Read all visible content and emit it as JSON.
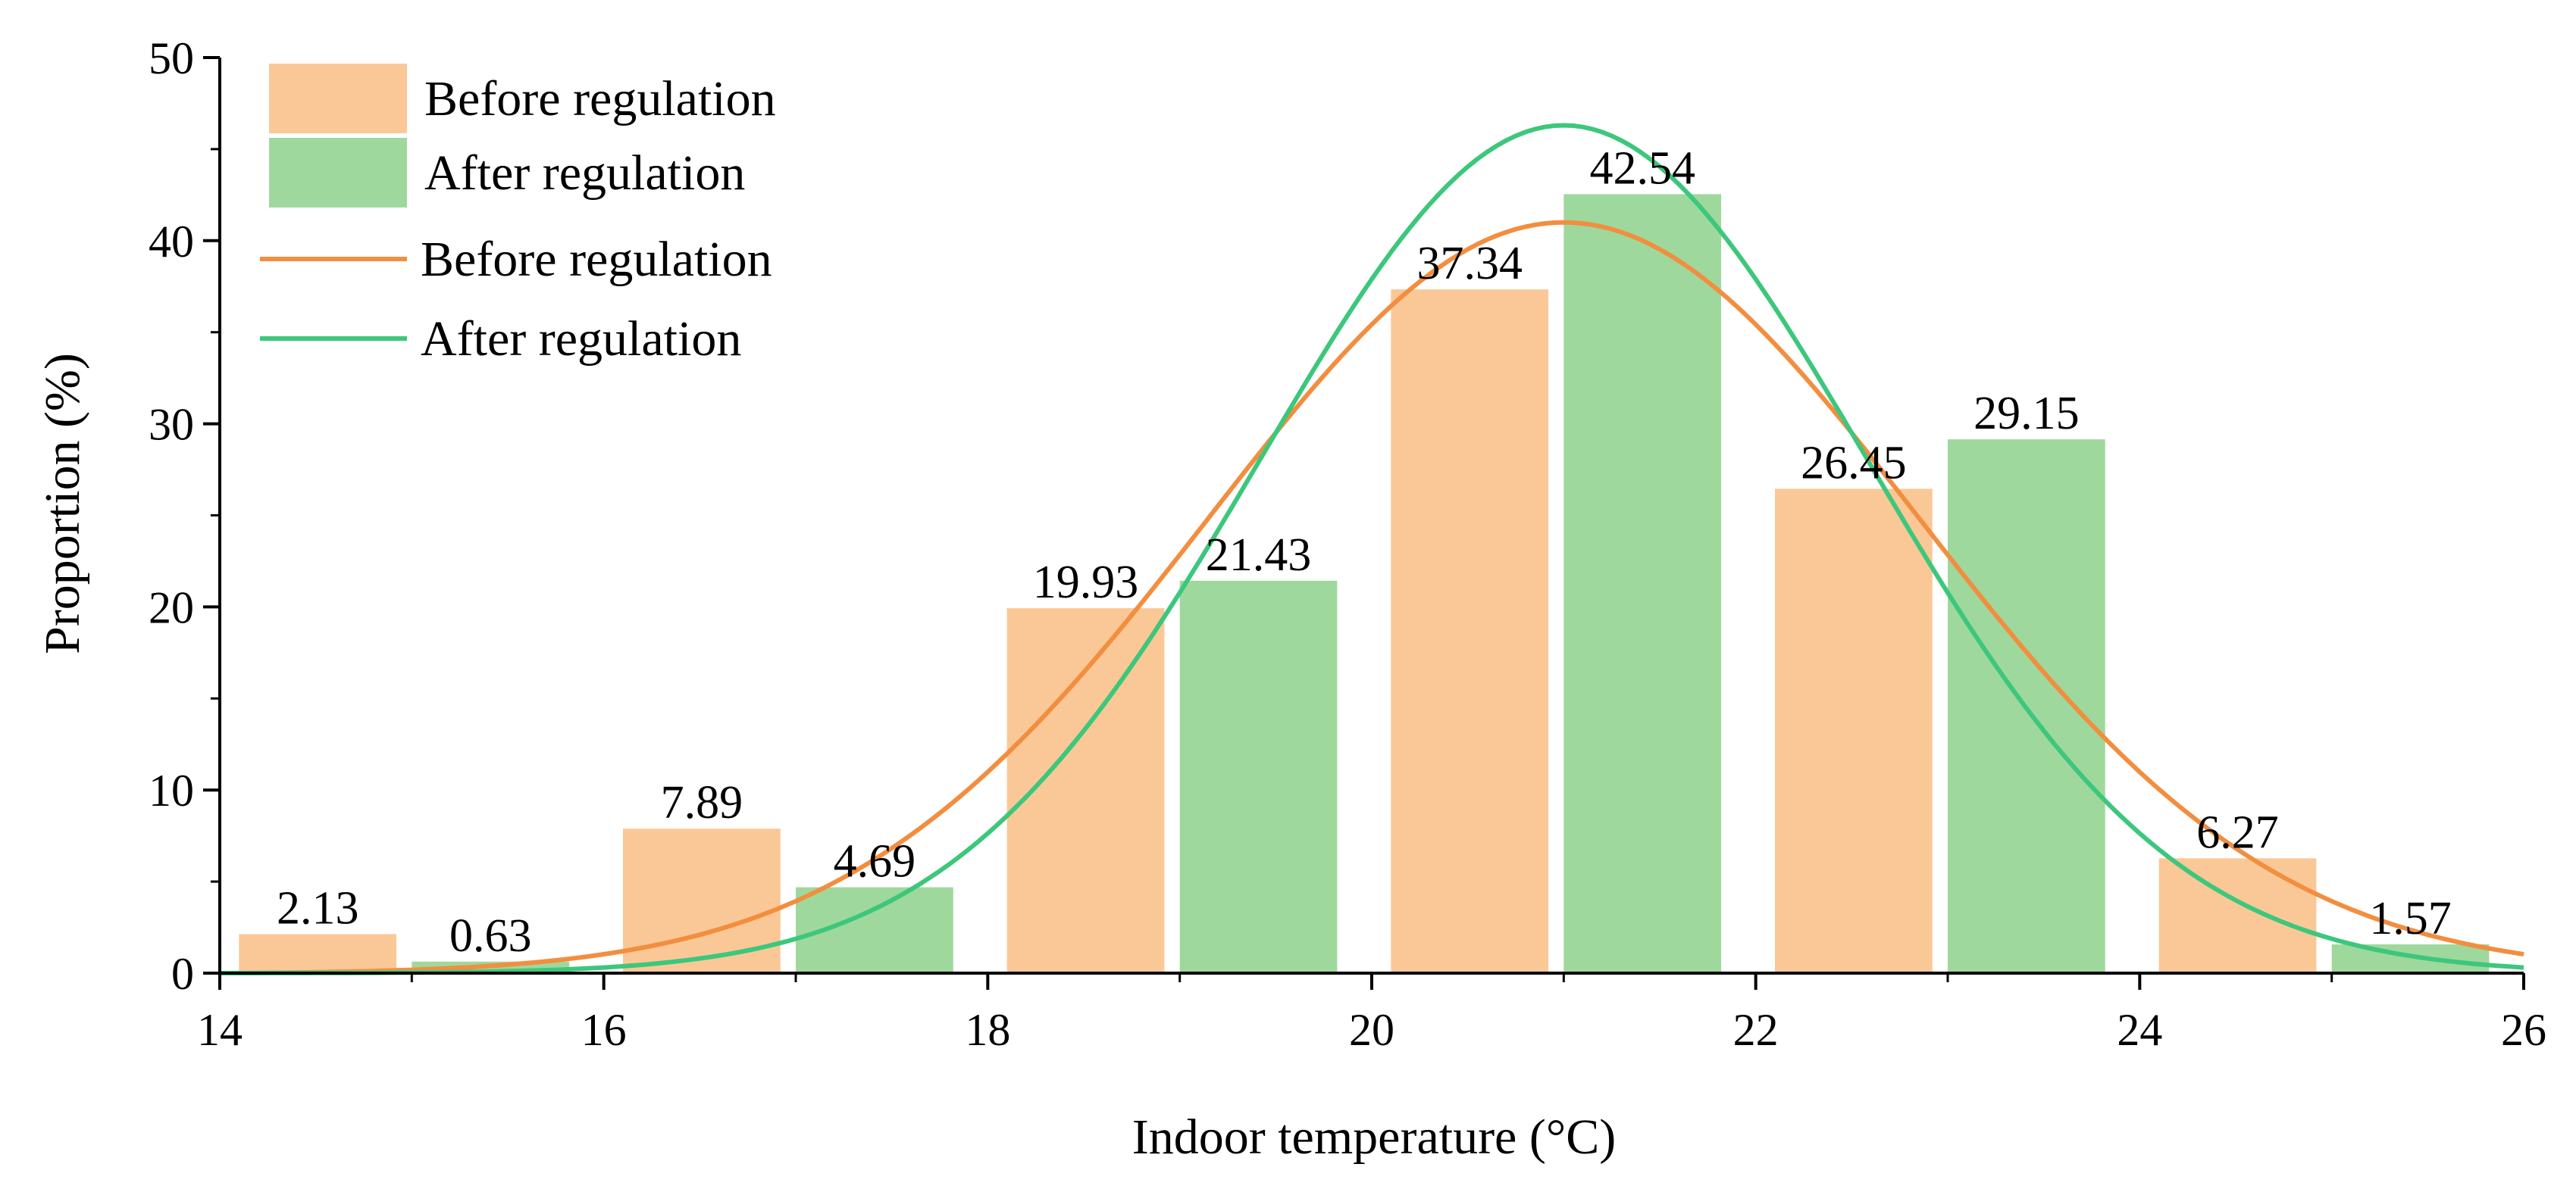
{
  "chart_data": {
    "type": "bar",
    "title": "",
    "xlabel": "Indoor temperature (°C)",
    "ylabel": "Proportion (%)",
    "xlim": [
      14,
      26
    ],
    "ylim": [
      0,
      50
    ],
    "xticks": [
      "14",
      "16",
      "18",
      "20",
      "22",
      "24",
      "26"
    ],
    "yticks": [
      "0",
      "10",
      "20",
      "30",
      "40",
      "50"
    ],
    "bin_width": 2,
    "bin_starts": [
      14,
      16,
      18,
      20,
      22,
      24
    ],
    "series": [
      {
        "name": "Before regulation",
        "kind": "bar",
        "color": "#FAC897",
        "values": [
          2.13,
          7.89,
          19.93,
          37.34,
          26.45,
          6.27
        ],
        "labels": [
          "2.13",
          "7.89",
          "19.93",
          "37.34",
          "26.45",
          "6.27"
        ]
      },
      {
        "name": "After regulation",
        "kind": "bar",
        "color": "#9FD89D",
        "values": [
          0.63,
          4.69,
          21.43,
          42.54,
          29.15,
          1.57
        ],
        "labels": [
          "0.63",
          "4.69",
          "21.43",
          "42.54",
          "29.15",
          "1.57"
        ]
      },
      {
        "name": "Before regulation",
        "kind": "curve",
        "color": "#F28E3F",
        "peak_x": 21.0,
        "peak_y": 41.0,
        "sigma": 1.85
      },
      {
        "name": "After regulation",
        "kind": "curve",
        "color": "#3DC77C",
        "peak_x": 21.0,
        "peak_y": 46.3,
        "sigma": 1.58
      }
    ],
    "legend": {
      "position": "top-left",
      "entries": [
        {
          "label": "Before regulation",
          "kind": "bar",
          "color": "#FAC897"
        },
        {
          "label": "After regulation",
          "kind": "bar",
          "color": "#9FD89D"
        },
        {
          "label": "Before regulation",
          "kind": "line",
          "color": "#F28E3F"
        },
        {
          "label": "After regulation",
          "kind": "line",
          "color": "#3DC77C"
        }
      ]
    }
  }
}
